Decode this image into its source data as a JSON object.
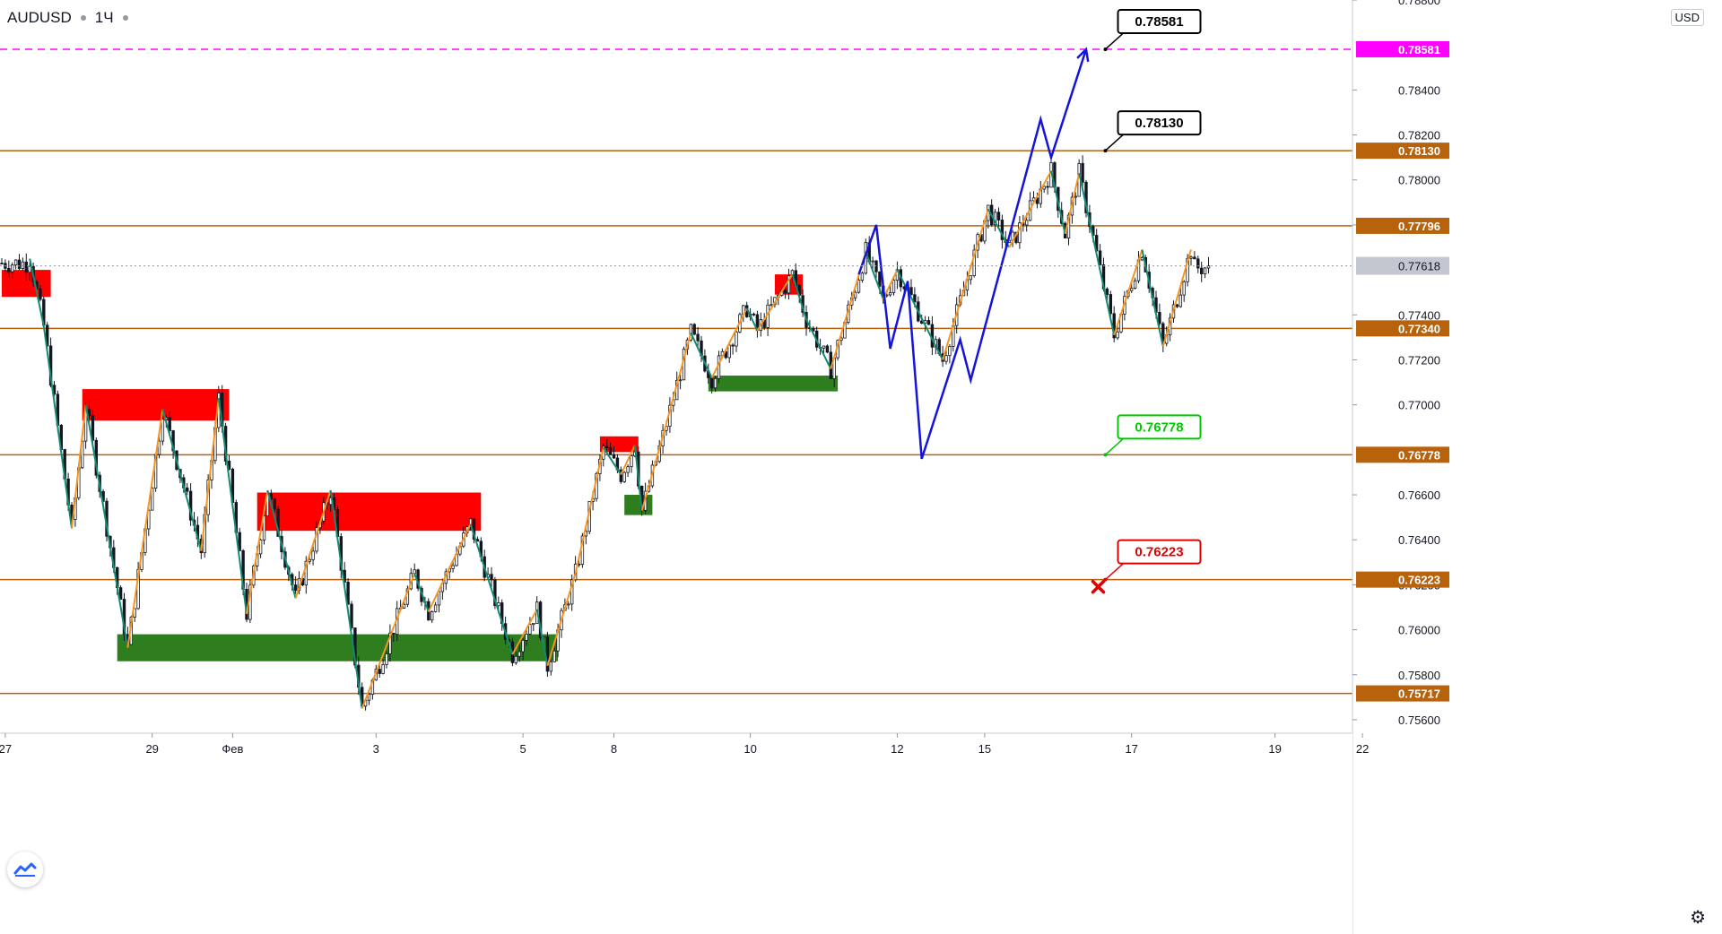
{
  "header": {
    "symbol": "AUDUSD",
    "interval": "1Ч"
  },
  "currency": "USD",
  "chart_data": {
    "type": "candlestick",
    "symbol": "AUDUSD",
    "interval": "1Ч",
    "ylim": [
      0.7554,
      0.788
    ],
    "y_ticks": [
      "0.75600",
      "0.75800",
      "0.76000",
      "0.76200",
      "0.76400",
      "0.76600",
      "0.77000",
      "0.77200",
      "0.77400",
      "0.77800",
      "0.78000",
      "0.78200",
      "0.78400",
      "0.78800"
    ],
    "x_ticks": [
      {
        "label": "27",
        "i": 1
      },
      {
        "label": "29",
        "i": 43
      },
      {
        "label": "Фев",
        "i": 66
      },
      {
        "label": "3",
        "i": 107
      },
      {
        "label": "5",
        "i": 149
      },
      {
        "label": "8",
        "i": 175
      },
      {
        "label": "10",
        "i": 214
      },
      {
        "label": "12",
        "i": 256
      },
      {
        "label": "15",
        "i": 281
      },
      {
        "label": "17",
        "i": 323
      },
      {
        "label": "19",
        "i": 364
      },
      {
        "label": "22",
        "i": 389
      }
    ],
    "last_price": 0.77618,
    "levels": [
      {
        "value": 0.78581,
        "label": "0.78581",
        "color": "#ff00ff",
        "style": "dashed"
      },
      {
        "value": 0.7813,
        "label": "0.78130",
        "color": "#b8620b",
        "style": "solid"
      },
      {
        "value": 0.77796,
        "label": "0.77796",
        "color": "#b8620b",
        "style": "solid"
      },
      {
        "value": 0.7734,
        "label": "0.77340",
        "color": "#b8620b",
        "style": "solid"
      },
      {
        "value": 0.76778,
        "label": "0.76778",
        "color": "#b8620b",
        "style": "solid"
      },
      {
        "value": 0.76223,
        "label": "0.76223",
        "color": "#b8620b",
        "style": "solid"
      },
      {
        "value": 0.75717,
        "label": "0.75717",
        "color": "#b8620b",
        "style": "solid"
      }
    ],
    "callouts": [
      {
        "label": "0.78581",
        "color": "#000000",
        "i": 315,
        "value": 0.78581
      },
      {
        "label": "0.78130",
        "color": "#000000",
        "i": 315,
        "value": 0.7813
      },
      {
        "label": "0.76778",
        "color": "#00c800",
        "i": 315,
        "value": 0.76778
      },
      {
        "label": "0.76223",
        "color": "#e00000",
        "i": 315,
        "value": 0.76223
      }
    ],
    "resistance_zones": [
      {
        "i0": 0,
        "i1": 14,
        "y0": 0.7748,
        "y1": 0.776
      },
      {
        "i0": 23,
        "i1": 65,
        "y0": 0.7693,
        "y1": 0.7707
      },
      {
        "i0": 73,
        "i1": 137,
        "y0": 0.7644,
        "y1": 0.7661
      },
      {
        "i0": 171,
        "i1": 182,
        "y0": 0.7679,
        "y1": 0.7686
      },
      {
        "i0": 221,
        "i1": 229,
        "y0": 0.7749,
        "y1": 0.7758
      }
    ],
    "support_zones": [
      {
        "i0": 33,
        "i1": 159,
        "y0": 0.7586,
        "y1": 0.7598
      },
      {
        "i0": 178,
        "i1": 186,
        "y0": 0.7651,
        "y1": 0.766
      },
      {
        "i0": 202,
        "i1": 239,
        "y0": 0.7706,
        "y1": 0.7713
      }
    ],
    "zigzag": [
      {
        "i": 8,
        "v": 0.7765
      },
      {
        "i": 12,
        "v": 0.7735
      },
      {
        "i": 20,
        "v": 0.7645
      },
      {
        "i": 24,
        "v": 0.77
      },
      {
        "i": 36,
        "v": 0.7592
      },
      {
        "i": 46,
        "v": 0.7698
      },
      {
        "i": 57,
        "v": 0.7635
      },
      {
        "i": 62,
        "v": 0.7703
      },
      {
        "i": 70,
        "v": 0.7607
      },
      {
        "i": 76,
        "v": 0.7662
      },
      {
        "i": 84,
        "v": 0.7614
      },
      {
        "i": 94,
        "v": 0.7662
      },
      {
        "i": 103,
        "v": 0.7565
      },
      {
        "i": 118,
        "v": 0.7625
      },
      {
        "i": 122,
        "v": 0.7608
      },
      {
        "i": 134,
        "v": 0.7647
      },
      {
        "i": 146,
        "v": 0.7589
      },
      {
        "i": 153,
        "v": 0.7609
      },
      {
        "i": 156,
        "v": 0.7584
      },
      {
        "i": 164,
        "v": 0.7625
      },
      {
        "i": 172,
        "v": 0.7681
      },
      {
        "i": 177,
        "v": 0.7669
      },
      {
        "i": 181,
        "v": 0.7682
      },
      {
        "i": 183,
        "v": 0.7653
      },
      {
        "i": 189,
        "v": 0.7686
      },
      {
        "i": 197,
        "v": 0.7732
      },
      {
        "i": 203,
        "v": 0.7712
      },
      {
        "i": 213,
        "v": 0.7743
      },
      {
        "i": 216,
        "v": 0.7733
      },
      {
        "i": 226,
        "v": 0.7758
      },
      {
        "i": 230,
        "v": 0.7738
      },
      {
        "i": 237,
        "v": 0.7716
      },
      {
        "i": 247,
        "v": 0.7768
      },
      {
        "i": 252,
        "v": 0.7747
      },
      {
        "i": 256,
        "v": 0.776
      },
      {
        "i": 269,
        "v": 0.772
      },
      {
        "i": 282,
        "v": 0.7787
      },
      {
        "i": 288,
        "v": 0.777
      },
      {
        "i": 300,
        "v": 0.7804
      },
      {
        "i": 304,
        "v": 0.7776
      },
      {
        "i": 308,
        "v": 0.7803
      },
      {
        "i": 318,
        "v": 0.7731
      },
      {
        "i": 326,
        "v": 0.7769
      },
      {
        "i": 332,
        "v": 0.7726
      },
      {
        "i": 340,
        "v": 0.7769
      }
    ],
    "projection": [
      {
        "i": 245,
        "v": 0.7758
      },
      {
        "i": 250,
        "v": 0.778
      },
      {
        "i": 254,
        "v": 0.7725
      },
      {
        "i": 259,
        "v": 0.7755
      },
      {
        "i": 263,
        "v": 0.7676
      },
      {
        "i": 274,
        "v": 0.7729
      },
      {
        "i": 277,
        "v": 0.7711
      },
      {
        "i": 297,
        "v": 0.7827
      },
      {
        "i": 300,
        "v": 0.781
      },
      {
        "i": 310,
        "v": 0.78581
      }
    ],
    "n_candles": 346
  }
}
